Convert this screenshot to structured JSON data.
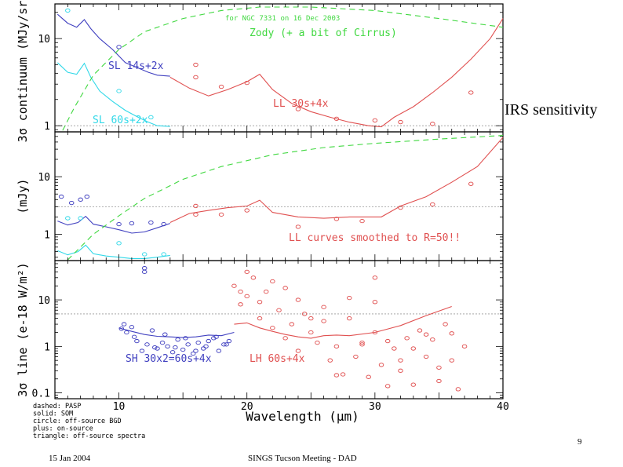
{
  "slide": {
    "side_label": "IRS sensitivity",
    "footer_date": "15 Jan 2004",
    "footer_title": "SINGS Tucson Meeting - DAD",
    "page_number": "9"
  },
  "colors": {
    "blue": "#4040c0",
    "cyan": "#30d8e8",
    "red": "#e05050",
    "green": "#40d840",
    "grey": "#999999"
  },
  "figure": {
    "xlabel": "Wavelength (μm)",
    "legend_lines": [
      "dashed:  PASP",
      "solid:   SOM",
      "circle:  off-source BGD",
      "plus:    on-source",
      "triangle: off-source spectra"
    ]
  },
  "chart_data": [
    {
      "type": "line",
      "panel": "top",
      "ylabel": "3σ continuum (MJy/sr)",
      "xlim": [
        5,
        40
      ],
      "ylim_log": [
        0.85,
        25
      ],
      "yscale": "log",
      "x_ticks": [
        10,
        20,
        30,
        40
      ],
      "y_ticks": [
        1,
        10
      ],
      "annotations": {
        "header": "for NGC 7331 on 16 Dec 2003",
        "zody": "Zody (+ a bit of Cirrus)",
        "sl_blue": "SL 14s+2x",
        "sl_cyan": "SL 60s+2x",
        "ll": "LL 30s+4x"
      },
      "series": [
        {
          "name": "SL 14s+2x",
          "color": "blue",
          "style": "solid",
          "x": [
            5.2,
            6.0,
            6.7,
            7.3,
            7.8,
            8.5,
            9.5,
            10.5,
            11.5,
            12.3,
            13.0,
            14.0
          ],
          "y": [
            19,
            15,
            13.5,
            16.5,
            13,
            10,
            7.5,
            5.3,
            4.6,
            4.1,
            3.8,
            3.7
          ]
        },
        {
          "name": "SL 60s+2x",
          "color": "cyan",
          "style": "solid",
          "x": [
            5.2,
            6.0,
            6.7,
            7.3,
            7.8,
            8.5,
            9.5,
            10.5,
            11.5,
            12.3,
            13.0,
            14.0
          ],
          "y": [
            5.3,
            4.1,
            3.9,
            5.2,
            3.6,
            2.5,
            1.9,
            1.5,
            1.25,
            1.1,
            1.0,
            0.98
          ]
        },
        {
          "name": "LL 30s+4x",
          "color": "red",
          "style": "solid",
          "x": [
            14,
            15.5,
            17,
            18.5,
            20,
            21,
            22,
            23.5,
            25,
            26.5,
            28,
            29.5,
            30.5,
            31.5,
            33,
            34.5,
            36,
            37.5,
            39,
            40
          ],
          "y": [
            3.6,
            2.7,
            2.2,
            2.6,
            3.2,
            3.9,
            2.6,
            1.8,
            1.45,
            1.25,
            1.1,
            1.0,
            0.97,
            1.25,
            1.65,
            2.4,
            3.6,
            5.8,
            10,
            17
          ]
        },
        {
          "name": "Zody",
          "color": "green",
          "style": "dashed",
          "x": [
            5.6,
            6.5,
            8,
            10,
            12,
            15,
            18,
            21,
            25,
            30,
            35,
            40
          ],
          "y": [
            0.88,
            1.6,
            3.8,
            7.5,
            12,
            17,
            21,
            23,
            23,
            21,
            17,
            13.5
          ]
        }
      ],
      "points": [
        {
          "color": "cyan",
          "marker": "circle",
          "x": [
            6,
            10,
            12.5
          ],
          "y": [
            21,
            2.5,
            1.25
          ]
        },
        {
          "color": "blue",
          "marker": "circle",
          "x": [
            10
          ],
          "y": [
            8
          ]
        },
        {
          "color": "red",
          "marker": "circle",
          "x": [
            16,
            16,
            18,
            20,
            24,
            27,
            30,
            32,
            34.5,
            37.5
          ],
          "y": [
            5,
            3.6,
            2.8,
            3.1,
            1.55,
            1.2,
            1.15,
            1.1,
            1.05,
            2.4
          ]
        }
      ]
    },
    {
      "type": "line",
      "panel": "middle",
      "ylabel": "(mJy)",
      "xlim": [
        5,
        40
      ],
      "ylim_log": [
        0.35,
        60
      ],
      "yscale": "log",
      "x_ticks": [
        10,
        20,
        30,
        40
      ],
      "y_ticks": [
        1,
        10
      ],
      "annotations": {
        "ll_note": "LL curves smoothed to R=50!!"
      },
      "series": [
        {
          "name": "SL",
          "color": "blue",
          "style": "solid",
          "x": [
            5.2,
            6.0,
            6.8,
            7.4,
            8,
            9,
            10,
            11,
            12,
            13,
            14
          ],
          "y": [
            1.7,
            1.45,
            1.6,
            2.05,
            1.5,
            1.35,
            1.2,
            1.05,
            1.1,
            1.3,
            1.55
          ]
        },
        {
          "name": "SL",
          "color": "cyan",
          "style": "solid",
          "x": [
            5.2,
            6,
            6.8,
            7.4,
            8,
            9,
            10,
            11,
            12,
            13,
            14
          ],
          "y": [
            0.52,
            0.44,
            0.5,
            0.65,
            0.46,
            0.42,
            0.4,
            0.38,
            0.38,
            0.4,
            0.43
          ]
        },
        {
          "name": "LL",
          "color": "red",
          "style": "solid",
          "x": [
            14,
            15.5,
            17,
            18.5,
            20,
            21,
            22,
            24,
            26,
            28,
            30.5,
            32,
            34,
            36,
            38,
            40
          ],
          "y": [
            1.6,
            2.3,
            2.6,
            2.9,
            3.1,
            3.9,
            2.4,
            2.0,
            1.9,
            2.0,
            2.0,
            3.1,
            4.5,
            8,
            15,
            48
          ]
        },
        {
          "name": "PASP",
          "color": "green",
          "style": "dashed",
          "x": [
            6,
            7,
            8,
            10,
            12,
            15,
            18,
            22,
            26,
            30,
            35,
            40
          ],
          "y": [
            0.36,
            0.6,
            1.0,
            2.1,
            4.2,
            9,
            15,
            24,
            32,
            38,
            45,
            52
          ]
        }
      ],
      "points": [
        {
          "color": "blue",
          "marker": "circle",
          "x": [
            5.5,
            6.3,
            7,
            7.5,
            10,
            11,
            12.5,
            13.5
          ],
          "y": [
            4.5,
            3.5,
            4,
            4.5,
            1.5,
            1.55,
            1.6,
            1.5
          ]
        },
        {
          "color": "cyan",
          "marker": "circle",
          "x": [
            6,
            7,
            10,
            12,
            13.5
          ],
          "y": [
            1.9,
            1.9,
            0.7,
            0.45,
            0.45
          ]
        },
        {
          "color": "red",
          "marker": "circle",
          "x": [
            16,
            16,
            18,
            20,
            24,
            27,
            29,
            32,
            34.5,
            37.5
          ],
          "y": [
            3.1,
            2.2,
            2.2,
            2.6,
            1.35,
            1.85,
            1.7,
            2.9,
            3.3,
            7.5
          ]
        }
      ]
    },
    {
      "type": "line",
      "panel": "bottom",
      "ylabel": "3σ line (e-18 W/m²)",
      "xlim": [
        5,
        40
      ],
      "ylim_log": [
        0.075,
        70
      ],
      "yscale": "log",
      "x_ticks": [
        10,
        20,
        30,
        40
      ],
      "y_ticks": [
        0.1,
        1,
        10
      ],
      "annotations": {
        "sh": "SH 30x2=60s+4x",
        "lh": "LH 60s+4x"
      },
      "series": [
        {
          "name": "SH 30x2=60s+4x",
          "color": "blue",
          "style": "solid",
          "x": [
            10,
            11,
            12,
            13,
            14,
            15,
            16,
            17,
            18,
            19
          ],
          "y": [
            2.5,
            2.1,
            1.8,
            1.65,
            1.6,
            1.55,
            1.6,
            1.75,
            1.7,
            2.0
          ]
        },
        {
          "name": "LH 60s+4x",
          "color": "red",
          "style": "solid",
          "x": [
            19,
            20,
            21,
            22,
            23,
            24,
            25,
            26,
            27,
            28,
            30,
            32,
            34,
            36
          ],
          "y": [
            3.0,
            3.2,
            2.5,
            2.1,
            1.8,
            1.6,
            1.5,
            1.7,
            1.75,
            1.7,
            2.0,
            2.8,
            4.6,
            7.2
          ]
        }
      ],
      "points": [
        {
          "color": "blue",
          "marker": "circle",
          "x": [
            10.2,
            10.6,
            11,
            11.4,
            11.8,
            12.2,
            12.6,
            13,
            13.4,
            13.8,
            14.2,
            14.6,
            15,
            15.4,
            15.8,
            16.2,
            16.6,
            17,
            17.4,
            17.8,
            18.2,
            18.6,
            12,
            12,
            10.4,
            11.2,
            12.8,
            13.6,
            14.4,
            15.2,
            16,
            16.8,
            17.6,
            18.4
          ],
          "y": [
            2.4,
            2.0,
            2.6,
            1.3,
            0.8,
            1.1,
            2.2,
            0.9,
            1.2,
            1.0,
            0.75,
            1.4,
            0.85,
            1.1,
            0.7,
            1.2,
            0.9,
            1.3,
            1.5,
            0.8,
            1.1,
            1.3,
            40,
            48,
            3.0,
            1.6,
            0.95,
            1.8,
            0.95,
            1.5,
            0.8,
            1.0,
            1.6,
            1.1
          ]
        },
        {
          "color": "red",
          "marker": "circle",
          "x": [
            19,
            19.5,
            20,
            20.5,
            21,
            21.5,
            22,
            22.5,
            23,
            23.5,
            24,
            24.5,
            25,
            25.5,
            26,
            26.5,
            27,
            27.5,
            28,
            28.5,
            29,
            29.5,
            30,
            30.5,
            31,
            31.5,
            32,
            32.5,
            33,
            33.5,
            34,
            34.5,
            35,
            35.5,
            36,
            36.5,
            37,
            20,
            22,
            24,
            26,
            28,
            30,
            32,
            34,
            36,
            19.5,
            21,
            23,
            25,
            27,
            29,
            31,
            33,
            35,
            30
          ],
          "y": [
            20,
            8,
            12,
            30,
            4,
            15,
            2.5,
            6,
            1.5,
            3,
            0.8,
            5,
            2,
            1.2,
            3.5,
            0.5,
            1.0,
            0.25,
            4,
            0.6,
            1.1,
            0.22,
            2.0,
            0.4,
            1.3,
            0.9,
            0.3,
            1.5,
            0.15,
            2.2,
            0.6,
            1.4,
            0.18,
            3.0,
            0.5,
            0.12,
            1.0,
            40,
            25,
            10,
            7,
            11,
            9,
            0.5,
            1.8,
            1.9,
            15,
            9,
            18,
            4,
            0.24,
            1.2,
            0.14,
            0.9,
            0.35,
            30
          ]
        }
      ]
    }
  ]
}
